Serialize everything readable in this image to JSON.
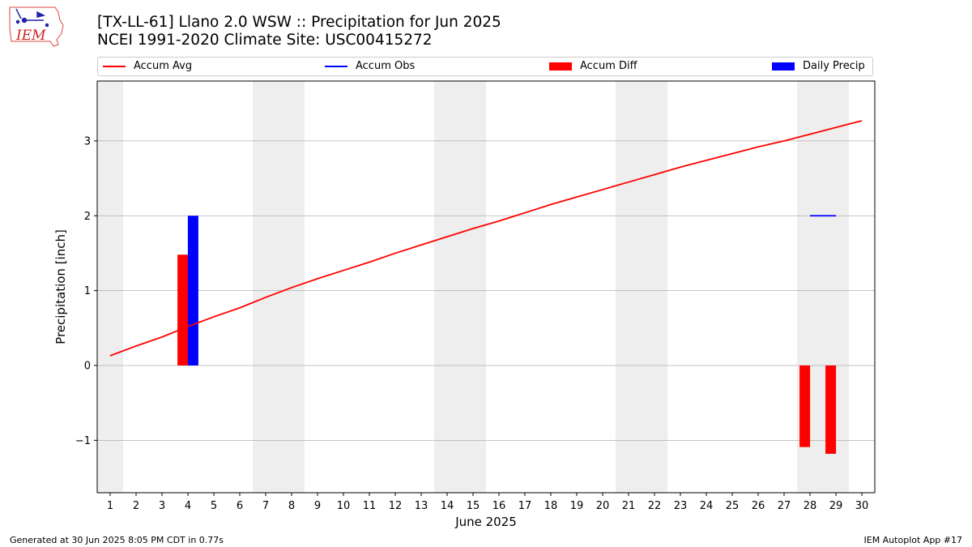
{
  "header": {
    "title_line1": "[TX-LL-61] Llano 2.0 WSW :: Precipitation for Jun 2025",
    "title_line2": "NCEI 1991-2020 Climate Site: USC00415272",
    "logo_text": "IEM"
  },
  "footer": {
    "generated": "Generated at 30 Jun 2025 8:05 PM CDT in 0.77s",
    "app": "IEM Autoplot App #17"
  },
  "chart_data": {
    "type": "bar",
    "xlabel": "June 2025",
    "ylabel": "Precipitation [inch]",
    "xlim": [
      0.5,
      30.5
    ],
    "ylim": [
      -1.7,
      3.8
    ],
    "yticks": [
      -1,
      0,
      1,
      2,
      3
    ],
    "ytick_labels": [
      "−1",
      "0",
      "1",
      "2",
      "3"
    ],
    "xticks": [
      1,
      2,
      3,
      4,
      5,
      6,
      7,
      8,
      9,
      10,
      11,
      12,
      13,
      14,
      15,
      16,
      17,
      18,
      19,
      20,
      21,
      22,
      23,
      24,
      25,
      26,
      27,
      28,
      29,
      30
    ],
    "grid": "horizontal",
    "weekend_shading": [
      [
        0.5,
        1.5
      ],
      [
        6.5,
        8.5
      ],
      [
        13.5,
        15.5
      ],
      [
        20.5,
        22.5
      ],
      [
        27.5,
        29.5
      ]
    ],
    "legend": {
      "placement": "top",
      "entries": [
        {
          "label": "Accum Avg",
          "kind": "line",
          "color": "#ff0000"
        },
        {
          "label": "Accum Obs",
          "kind": "line",
          "color": "#0000ff"
        },
        {
          "label": "Accum Diff",
          "kind": "bar",
          "color": "#ff0000"
        },
        {
          "label": "Daily Precip",
          "kind": "bar",
          "color": "#0000ff"
        }
      ]
    },
    "series": [
      {
        "name": "Accum Avg",
        "kind": "line",
        "color": "#ff0000",
        "x": [
          1,
          2,
          3,
          4,
          5,
          6,
          7,
          8,
          9,
          10,
          11,
          12,
          13,
          14,
          15,
          16,
          17,
          18,
          19,
          20,
          21,
          22,
          23,
          24,
          25,
          26,
          27,
          28,
          29,
          30
        ],
        "values": [
          0.13,
          0.26,
          0.38,
          0.52,
          0.65,
          0.77,
          0.91,
          1.04,
          1.16,
          1.27,
          1.38,
          1.5,
          1.61,
          1.72,
          1.83,
          1.93,
          2.04,
          2.15,
          2.25,
          2.35,
          2.45,
          2.55,
          2.65,
          2.74,
          2.83,
          2.92,
          3.0,
          3.09,
          3.18,
          3.27
        ]
      },
      {
        "name": "Accum Obs",
        "kind": "line",
        "color": "#0000ff",
        "x": [
          28,
          29
        ],
        "values": [
          2.0,
          2.0
        ]
      },
      {
        "name": "Accum Diff",
        "kind": "bar",
        "color": "#ff0000",
        "x": [
          4,
          28,
          29
        ],
        "values": [
          1.48,
          -1.09,
          -1.18
        ]
      },
      {
        "name": "Daily Precip",
        "kind": "bar",
        "color": "#0000ff",
        "x": [
          4
        ],
        "values": [
          2.0
        ]
      }
    ]
  }
}
